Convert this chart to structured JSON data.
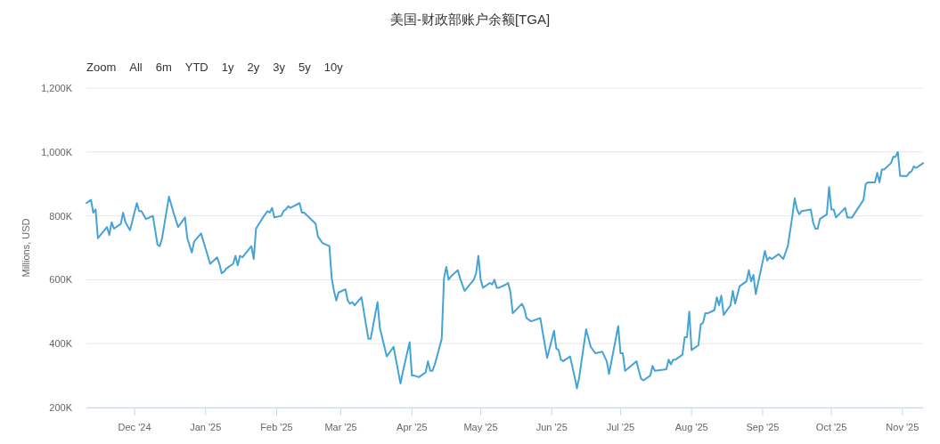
{
  "chart_data": {
    "type": "line",
    "title": "美国-财政部账户余额[TGA]",
    "ylabel": "Millions, USD",
    "annotations": [
      "Zoom",
      "All",
      "6m",
      "YTD",
      "1y",
      "2y",
      "3y",
      "5y",
      "10y"
    ],
    "xlim": [
      "2024-11-10",
      "2025-11-10"
    ],
    "xticks": [
      {
        "value": "2024-12-01",
        "label": "Dec '24"
      },
      {
        "value": "2025-01-01",
        "label": "Jan '25"
      },
      {
        "value": "2025-02-01",
        "label": "Feb '25"
      },
      {
        "value": "2025-03-01",
        "label": "Mar '25"
      },
      {
        "value": "2025-04-01",
        "label": "Apr '25"
      },
      {
        "value": "2025-05-01",
        "label": "May '25"
      },
      {
        "value": "2025-06-01",
        "label": "Jun '25"
      },
      {
        "value": "2025-07-01",
        "label": "Jul '25"
      },
      {
        "value": "2025-08-01",
        "label": "Aug '25"
      },
      {
        "value": "2025-09-01",
        "label": "Sep '25"
      },
      {
        "value": "2025-10-01",
        "label": "Oct '25"
      },
      {
        "value": "2025-11-01",
        "label": "Nov '25"
      }
    ],
    "ylim": [
      200000,
      1200000
    ],
    "yticks": [
      {
        "value": 200000,
        "label": "200K"
      },
      {
        "value": 400000,
        "label": "400K"
      },
      {
        "value": 600000,
        "label": "600K"
      },
      {
        "value": 800000,
        "label": "800K"
      },
      {
        "value": 1000000,
        "label": "1,000K"
      },
      {
        "value": 1200000,
        "label": "1,200K"
      }
    ],
    "grid": "y",
    "line_style": "solid",
    "x": [
      "2024-11-10",
      "2024-11-12",
      "2024-11-13",
      "2024-11-14",
      "2024-11-15",
      "2024-11-19",
      "2024-11-20",
      "2024-11-21",
      "2024-11-22",
      "2024-11-25",
      "2024-11-26",
      "2024-11-27",
      "2024-11-29",
      "2024-12-02",
      "2024-12-03",
      "2024-12-04",
      "2024-12-06",
      "2024-12-09",
      "2024-12-11",
      "2024-12-12",
      "2024-12-13",
      "2024-12-16",
      "2024-12-18",
      "2024-12-20",
      "2024-12-23",
      "2024-12-24",
      "2024-12-26",
      "2024-12-27",
      "2024-12-30",
      "2025-01-03",
      "2025-01-06",
      "2025-01-07",
      "2025-01-08",
      "2025-01-09",
      "2025-01-10",
      "2025-01-13",
      "2025-01-14",
      "2025-01-15",
      "2025-01-16",
      "2025-01-17",
      "2025-01-21",
      "2025-01-22",
      "2025-01-23",
      "2025-01-26",
      "2025-01-28",
      "2025-01-29",
      "2025-01-30",
      "2025-01-31",
      "2025-02-03",
      "2025-02-04",
      "2025-02-05",
      "2025-02-06",
      "2025-02-07",
      "2025-02-11",
      "2025-02-12",
      "2025-02-13",
      "2025-02-18",
      "2025-02-19",
      "2025-02-21",
      "2025-02-24",
      "2025-02-25",
      "2025-02-26",
      "2025-02-27",
      "2025-02-28",
      "2025-03-03",
      "2025-03-04",
      "2025-03-05",
      "2025-03-06",
      "2025-03-07",
      "2025-03-10",
      "2025-03-13",
      "2025-03-14",
      "2025-03-17",
      "2025-03-18",
      "2025-03-21",
      "2025-03-24",
      "2025-03-27",
      "2025-03-28",
      "2025-03-31",
      "2025-04-01",
      "2025-04-02",
      "2025-04-04",
      "2025-04-07",
      "2025-04-08",
      "2025-04-09",
      "2025-04-10",
      "2025-04-11",
      "2025-04-14",
      "2025-04-15",
      "2025-04-16",
      "2025-04-17",
      "2025-04-18",
      "2025-04-21",
      "2025-04-22",
      "2025-04-24",
      "2025-04-28",
      "2025-04-29",
      "2025-04-30",
      "2025-05-01",
      "2025-05-02",
      "2025-05-05",
      "2025-05-06",
      "2025-05-07",
      "2025-05-08",
      "2025-05-09",
      "2025-05-12",
      "2025-05-13",
      "2025-05-14",
      "2025-05-15",
      "2025-05-19",
      "2025-05-20",
      "2025-05-21",
      "2025-05-23",
      "2025-05-27",
      "2025-05-30",
      "2025-06-02",
      "2025-06-03",
      "2025-06-04",
      "2025-06-05",
      "2025-06-06",
      "2025-06-09",
      "2025-06-11",
      "2025-06-12",
      "2025-06-13",
      "2025-06-16",
      "2025-06-18",
      "2025-06-20",
      "2025-06-23",
      "2025-06-25",
      "2025-06-26",
      "2025-06-30",
      "2025-07-01",
      "2025-07-02",
      "2025-07-03",
      "2025-07-08",
      "2025-07-09",
      "2025-07-10",
      "2025-07-11",
      "2025-07-14",
      "2025-07-15",
      "2025-07-16",
      "2025-07-21",
      "2025-07-22",
      "2025-07-23",
      "2025-07-24",
      "2025-07-25",
      "2025-07-28",
      "2025-07-29",
      "2025-07-30",
      "2025-07-31",
      "2025-08-01",
      "2025-08-04",
      "2025-08-05",
      "2025-08-06",
      "2025-08-07",
      "2025-08-08",
      "2025-08-11",
      "2025-08-12",
      "2025-08-13",
      "2025-08-14",
      "2025-08-15",
      "2025-08-18",
      "2025-08-19",
      "2025-08-20",
      "2025-08-22",
      "2025-08-25",
      "2025-08-26",
      "2025-08-27",
      "2025-08-28",
      "2025-08-29",
      "2025-09-02",
      "2025-09-03",
      "2025-09-04",
      "2025-09-05",
      "2025-09-08",
      "2025-09-10",
      "2025-09-12",
      "2025-09-14",
      "2025-09-15",
      "2025-09-16",
      "2025-09-17",
      "2025-09-18",
      "2025-09-22",
      "2025-09-23",
      "2025-09-24",
      "2025-09-25",
      "2025-09-26",
      "2025-09-29",
      "2025-09-30",
      "2025-10-01",
      "2025-10-02",
      "2025-10-03",
      "2025-10-07",
      "2025-10-08",
      "2025-10-10",
      "2025-10-15",
      "2025-10-16",
      "2025-10-17",
      "2025-10-20",
      "2025-10-21",
      "2025-10-22",
      "2025-10-23",
      "2025-10-24",
      "2025-10-27",
      "2025-10-28",
      "2025-10-29",
      "2025-10-30",
      "2025-10-31",
      "2025-11-03",
      "2025-11-04",
      "2025-11-05",
      "2025-11-06",
      "2025-11-07",
      "2025-11-10"
    ],
    "series": [
      {
        "color": "#45a3d6",
        "values": [
          840000,
          850000,
          810000,
          820000,
          730000,
          765000,
          740000,
          780000,
          760000,
          775000,
          810000,
          780000,
          755000,
          840000,
          815000,
          815000,
          790000,
          800000,
          710000,
          705000,
          730000,
          860000,
          810000,
          765000,
          795000,
          730000,
          685000,
          720000,
          745000,
          650000,
          670000,
          650000,
          620000,
          625000,
          635000,
          650000,
          675000,
          645000,
          675000,
          670000,
          705000,
          665000,
          760000,
          795000,
          815000,
          810000,
          825000,
          795000,
          800000,
          815000,
          820000,
          830000,
          825000,
          840000,
          810000,
          810000,
          775000,
          735000,
          715000,
          705000,
          605000,
          565000,
          535000,
          560000,
          570000,
          535000,
          525000,
          530000,
          520000,
          545000,
          415000,
          415000,
          530000,
          450000,
          360000,
          390000,
          275000,
          310000,
          405000,
          300000,
          300000,
          295000,
          310000,
          345000,
          315000,
          315000,
          335000,
          415000,
          605000,
          640000,
          600000,
          610000,
          630000,
          605000,
          565000,
          600000,
          620000,
          675000,
          600000,
          575000,
          590000,
          585000,
          600000,
          575000,
          575000,
          585000,
          590000,
          560000,
          495000,
          525000,
          510000,
          480000,
          470000,
          480000,
          355000,
          440000,
          385000,
          380000,
          350000,
          345000,
          360000,
          295000,
          260000,
          295000,
          445000,
          390000,
          370000,
          375000,
          345000,
          305000,
          455000,
          370000,
          370000,
          315000,
          345000,
          315000,
          290000,
          285000,
          300000,
          330000,
          315000,
          320000,
          350000,
          335000,
          350000,
          350000,
          365000,
          420000,
          420000,
          500000,
          380000,
          395000,
          460000,
          465000,
          495000,
          495000,
          505000,
          545000,
          520000,
          550000,
          490000,
          520000,
          565000,
          525000,
          580000,
          595000,
          630000,
          595000,
          615000,
          555000,
          690000,
          660000,
          670000,
          665000,
          680000,
          665000,
          705000,
          800000,
          855000,
          820000,
          805000,
          815000,
          820000,
          780000,
          760000,
          760000,
          790000,
          805000,
          890000,
          820000,
          820000,
          795000,
          825000,
          795000,
          795000,
          850000,
          900000,
          905000,
          905000,
          935000,
          905000,
          945000,
          945000,
          965000,
          985000,
          985000,
          1000000,
          925000,
          925000,
          935000,
          940000,
          955000,
          950000,
          965000
        ]
      }
    ]
  }
}
